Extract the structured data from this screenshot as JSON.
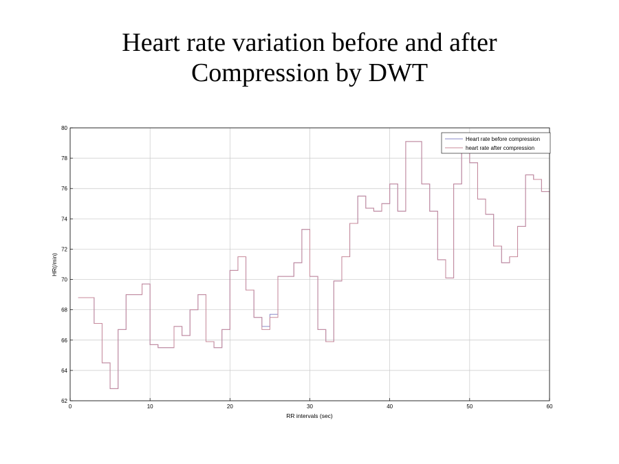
{
  "title_line1": "Heart rate variation before and after",
  "title_line2": "Compression by DWT",
  "chart_data": {
    "type": "line",
    "style": "stairs",
    "xlabel": "RR intervals (sec)",
    "ylabel": "HR(/min)",
    "xlim": [
      0,
      60
    ],
    "ylim": [
      62,
      80
    ],
    "xticks": [
      0,
      10,
      20,
      30,
      40,
      50,
      60
    ],
    "yticks": [
      62,
      64,
      66,
      68,
      70,
      72,
      74,
      76,
      78,
      80
    ],
    "grid": true,
    "legend_position": "top-right",
    "x": [
      1,
      2,
      3,
      4,
      5,
      6,
      7,
      8,
      9,
      10,
      11,
      12,
      13,
      14,
      15,
      16,
      17,
      18,
      19,
      20,
      21,
      22,
      23,
      24,
      25,
      26,
      27,
      28,
      29,
      30,
      31,
      32,
      33,
      34,
      35,
      36,
      37,
      38,
      39,
      40,
      41,
      42,
      43,
      44,
      45,
      46,
      47,
      48,
      49,
      50,
      51,
      52,
      53,
      54,
      55,
      56,
      57,
      58,
      59,
      60
    ],
    "series": [
      {
        "name": "Heart rate before compression",
        "color": "#8a8ac8",
        "values": [
          68.8,
          68.8,
          67.1,
          64.5,
          62.8,
          66.7,
          69.0,
          69.0,
          69.7,
          65.7,
          65.5,
          65.5,
          66.9,
          66.3,
          68.0,
          69.0,
          65.9,
          65.5,
          66.7,
          70.6,
          71.5,
          69.3,
          67.5,
          66.9,
          67.7,
          70.2,
          70.2,
          71.1,
          73.3,
          70.2,
          66.7,
          65.9,
          69.9,
          71.5,
          73.7,
          75.5,
          74.7,
          74.5,
          75.0,
          76.3,
          74.5,
          79.1,
          79.1,
          76.3,
          74.5,
          71.3,
          70.1,
          76.3,
          78.6,
          77.7,
          75.3,
          74.3,
          72.2,
          71.1,
          71.5,
          73.5,
          76.9,
          76.6,
          75.8,
          71.8
        ]
      },
      {
        "name": "heart rate after compression",
        "color": "#c88a9a",
        "values": [
          68.8,
          68.8,
          67.1,
          64.5,
          62.8,
          66.7,
          69.0,
          69.0,
          69.7,
          65.7,
          65.5,
          65.5,
          66.9,
          66.3,
          68.0,
          69.0,
          65.9,
          65.5,
          66.7,
          70.6,
          71.5,
          69.3,
          67.5,
          66.7,
          67.5,
          70.2,
          70.2,
          71.1,
          73.3,
          70.2,
          66.7,
          65.9,
          69.9,
          71.5,
          73.7,
          75.5,
          74.7,
          74.5,
          75.0,
          76.3,
          74.5,
          79.1,
          79.1,
          76.3,
          74.5,
          71.3,
          70.1,
          76.3,
          78.6,
          77.7,
          75.3,
          74.3,
          72.2,
          71.1,
          71.5,
          73.5,
          76.9,
          76.6,
          75.8,
          71.8
        ]
      }
    ]
  }
}
